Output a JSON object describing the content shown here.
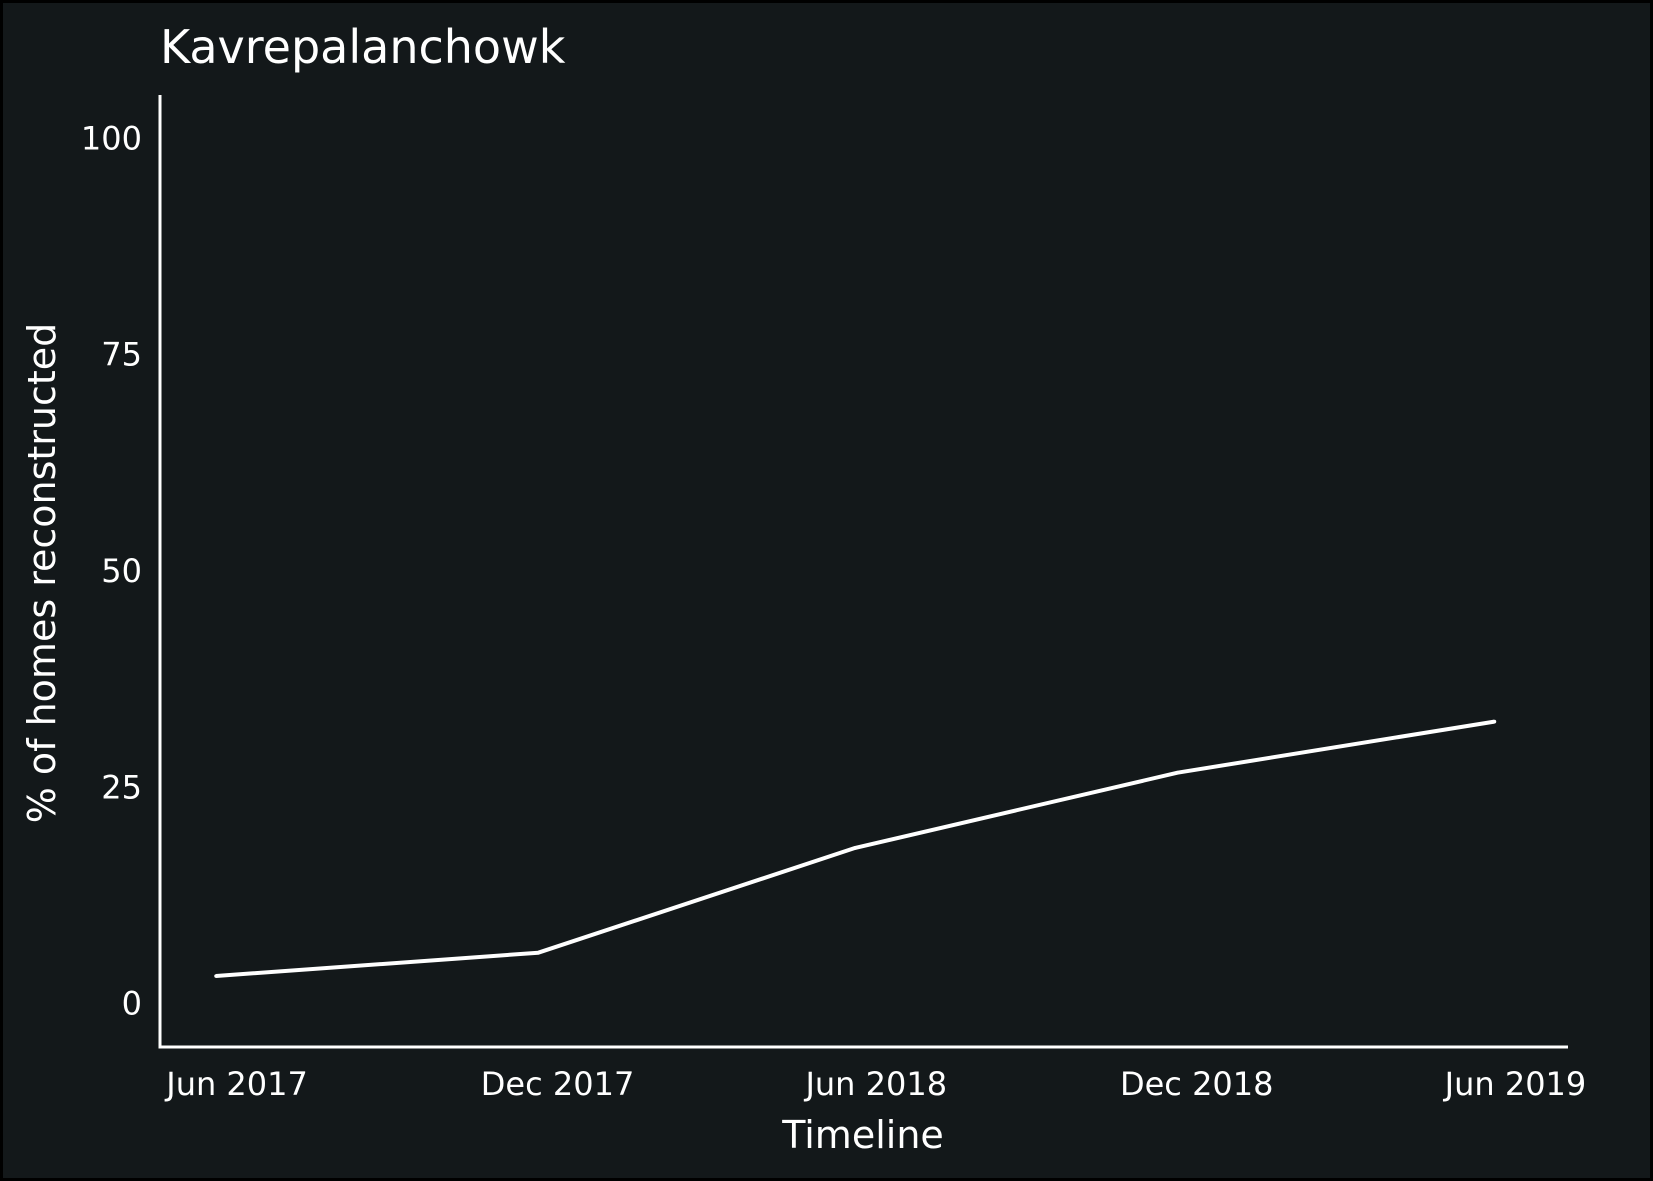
{
  "colors": {
    "background": "#13181a",
    "frame": "#000000",
    "foreground": "#ffffff"
  },
  "chart_data": {
    "type": "line",
    "title": "Kavrepalanchowk",
    "xlabel": "Timeline",
    "ylabel": "% of homes reconstructed",
    "x_axis_type": "date",
    "xlim": [
      "2017-04-18",
      "2019-07-01"
    ],
    "ylim": [
      -5,
      105
    ],
    "x_ticks": [
      {
        "date": "2017-06-01",
        "label": "Jun 2017"
      },
      {
        "date": "2017-12-01",
        "label": "Dec 2017"
      },
      {
        "date": "2018-06-01",
        "label": "Jun 2018"
      },
      {
        "date": "2018-12-01",
        "label": "Dec 2018"
      },
      {
        "date": "2019-06-01",
        "label": "Jun 2019"
      }
    ],
    "y_ticks": [
      {
        "value": 0,
        "label": "0"
      },
      {
        "value": 25,
        "label": "25"
      },
      {
        "value": 50,
        "label": "50"
      },
      {
        "value": 75,
        "label": "75"
      },
      {
        "value": 100,
        "label": "100"
      }
    ],
    "grid": false,
    "legend": "none",
    "series": [
      {
        "points": [
          {
            "x": "2017-05-20",
            "y": 3.2
          },
          {
            "x": "2017-11-20",
            "y": 5.9
          },
          {
            "x": "2018-05-20",
            "y": 18.0
          },
          {
            "x": "2018-11-20",
            "y": 26.7
          },
          {
            "x": "2019-05-20",
            "y": 32.6
          }
        ]
      }
    ]
  }
}
